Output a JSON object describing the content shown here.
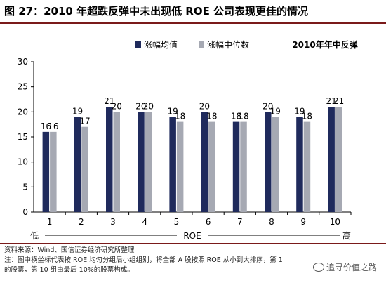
{
  "title": "图 27：2010 年超跌反弹中未出现低 ROE 公司表现更佳的情况",
  "chart_data": {
    "type": "bar",
    "categories": [
      "1",
      "2",
      "3",
      "4",
      "5",
      "6",
      "7",
      "8",
      "9",
      "10"
    ],
    "series": [
      {
        "name": "涨幅均值",
        "values": [
          16,
          19,
          21,
          20,
          19,
          20,
          18,
          20,
          19,
          21
        ],
        "color": "#1f2a5c"
      },
      {
        "name": "涨幅中位数",
        "values": [
          16,
          17,
          20,
          20,
          18,
          18,
          18,
          19,
          18,
          21
        ],
        "color": "#a6a9b3"
      }
    ],
    "data_labels": {
      "涨幅均值": [
        "16",
        "19",
        "21",
        "20",
        "19",
        "20",
        "18",
        "20",
        "19",
        "21"
      ],
      "涨幅中位数": [
        "16",
        "17",
        "20",
        "20",
        "18",
        "18",
        "18",
        "19",
        "18",
        "21"
      ]
    },
    "yticks": [
      "0",
      "5",
      "10",
      "15",
      "20",
      "25",
      "30"
    ],
    "ylim": [
      0,
      30
    ],
    "grid": false,
    "legend_position": "top-center",
    "annotation": "2010年年中反弹",
    "x_axis_left": "低",
    "x_axis_center": "ROE",
    "x_axis_right": "高"
  },
  "footer": {
    "source": "资料来源：Wind、国信证券经济研究所整理",
    "note_line1": "注：图中横坐标代表按 ROE 均匀分组后小组组别，将全部 A 股按照 ROE 从小到大排序，第 1",
    "note_line2": "的股票，第 10 组由最后 10%的股票构成。",
    "watermark": "追寻价值之路"
  }
}
